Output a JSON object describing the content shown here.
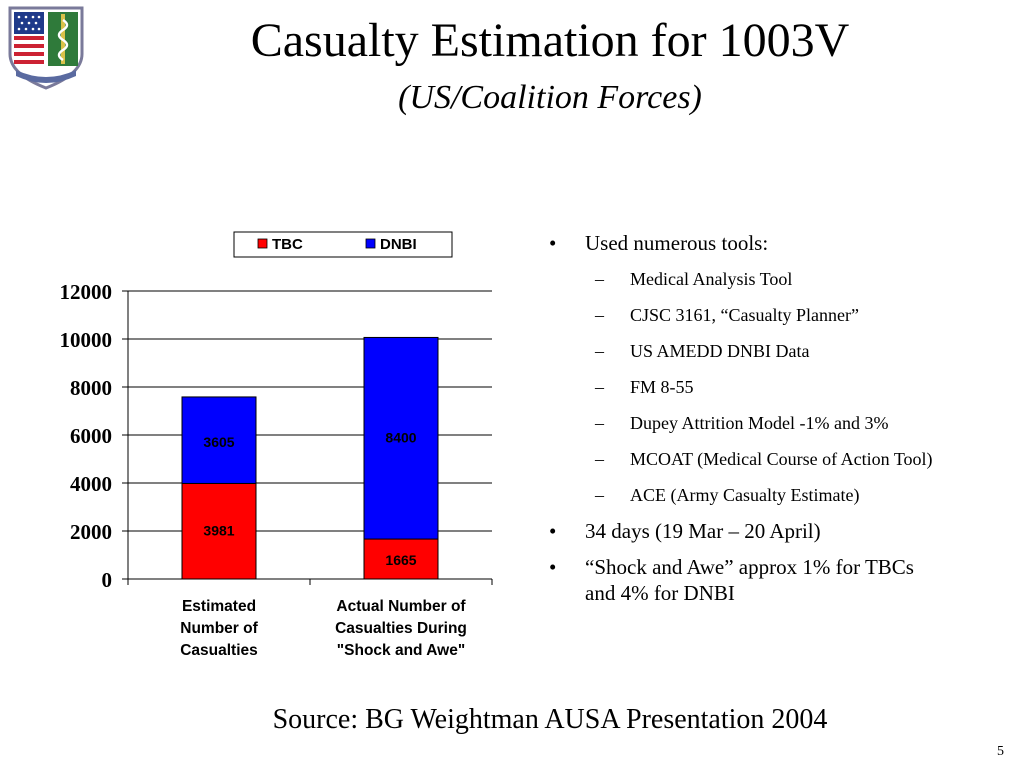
{
  "title": "Casualty Estimation for 1003V",
  "subtitle": "(US/Coalition Forces)",
  "chart_data": {
    "type": "bar",
    "stacked": true,
    "categories": [
      [
        "Estimated",
        "Number of",
        "Casualties"
      ],
      [
        "Actual Number of",
        "Casualties During",
        "\"Shock and Awe\""
      ]
    ],
    "series": [
      {
        "name": "TBC",
        "values": [
          3981,
          1665
        ],
        "labels": [
          "3981",
          "1665"
        ],
        "color": "#ff0000"
      },
      {
        "name": "DNBI",
        "values": [
          3605,
          8400
        ],
        "labels": [
          "3605",
          "8400"
        ],
        "color": "#0000ff"
      }
    ],
    "ylim": [
      0,
      12000
    ],
    "yticks": [
      "0",
      "2000",
      "4000",
      "6000",
      "8000",
      "10000",
      "12000"
    ],
    "grid": true,
    "legend": "top",
    "xlabel": "",
    "ylabel": ""
  },
  "bullets": {
    "tools_heading": "Used numerous tools:",
    "tools": [
      "Medical Analysis Tool",
      "CJSC 3161, “Casualty Planner”",
      "US AMEDD DNBI Data",
      "FM 8-55",
      "Dupey Attrition Model -1% and 3%",
      "MCOAT (Medical Course of Action Tool)",
      "ACE (Army Casualty Estimate)"
    ],
    "days": "34 days (19 Mar – 20 April)",
    "shock": "“Shock and Awe” approx 1% for TBCs and 4% for DNBI",
    "bullet_mark": "•",
    "dash_mark": "–"
  },
  "source": "Source: BG Weightman AUSA Presentation 2004",
  "page_number": "5"
}
